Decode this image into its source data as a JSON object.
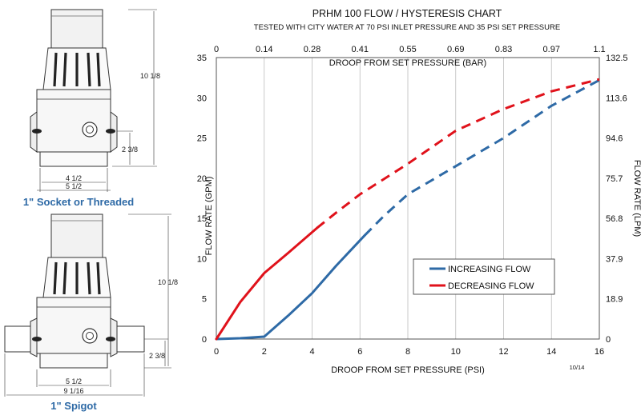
{
  "valves": {
    "top": {
      "caption": "1\" Socket or Threaded",
      "dim_height": "10 1/8",
      "dim_port": "2 3/8",
      "dim_width_inner": "4 1/2",
      "dim_width_outer": "5 1/2"
    },
    "bottom": {
      "caption": "1\" Spigot",
      "dim_height": "10 1/8",
      "dim_port": "2 3/8",
      "dim_width_inner": "5 1/2",
      "dim_width_outer": "9 1/16"
    }
  },
  "chart_data": {
    "type": "line",
    "title": "PRHM 100 FLOW / HYSTERESIS CHART",
    "subtitle": "TESTED WITH CITY WATER AT 70 PSI INLET PRESSURE AND 35 PSI SET PRESSURE",
    "xlabel": "DROOP FROM SET PRESSURE (PSI)",
    "ylabel": "FLOW RATE (GPM)",
    "x2label": "DROOP FROM SET PRESSURE (BAR)",
    "y2label": "FLOW RATE (LPM)",
    "xlim": [
      0,
      16
    ],
    "ylim": [
      0,
      35
    ],
    "xticks": [
      "0",
      "2",
      "4",
      "6",
      "8",
      "10",
      "12",
      "14",
      "16"
    ],
    "yticks": [
      "0",
      "5",
      "10",
      "15",
      "20",
      "25",
      "30",
      "35"
    ],
    "x2ticks": [
      "0",
      "0.14",
      "0.28",
      "0.41",
      "0.55",
      "0.69",
      "0.83",
      "0.97",
      "1.1"
    ],
    "y2ticks": [
      "0",
      "18.9",
      "37.9",
      "56.8",
      "75.7",
      "94.6",
      "113.6",
      "132.5"
    ],
    "grid": "vertical",
    "legend": "center-right",
    "date_code": "10/14",
    "series": [
      {
        "name": "INCREASING FLOW",
        "color": "#2e6aa6",
        "style": "solid-then-dashed",
        "dash_from_x": 6.2,
        "x": [
          0,
          1,
          2,
          3,
          4,
          5,
          6.2,
          7,
          8,
          10,
          12,
          14,
          16
        ],
        "y": [
          0,
          0.1,
          0.3,
          2.9,
          5.7,
          9.1,
          12.9,
          15.3,
          18,
          21.5,
          25,
          29,
          32.2
        ]
      },
      {
        "name": "DECREASING FLOW",
        "color": "#e0121b",
        "style": "solid-then-dashed",
        "dash_from_x": 4.2,
        "x": [
          0,
          1,
          2,
          3,
          4.2,
          5,
          6,
          8,
          10,
          12,
          14,
          16
        ],
        "y": [
          0,
          4.6,
          8.2,
          10.7,
          13.8,
          15.7,
          18,
          21.8,
          25.9,
          28.6,
          30.8,
          32.3
        ]
      }
    ]
  }
}
